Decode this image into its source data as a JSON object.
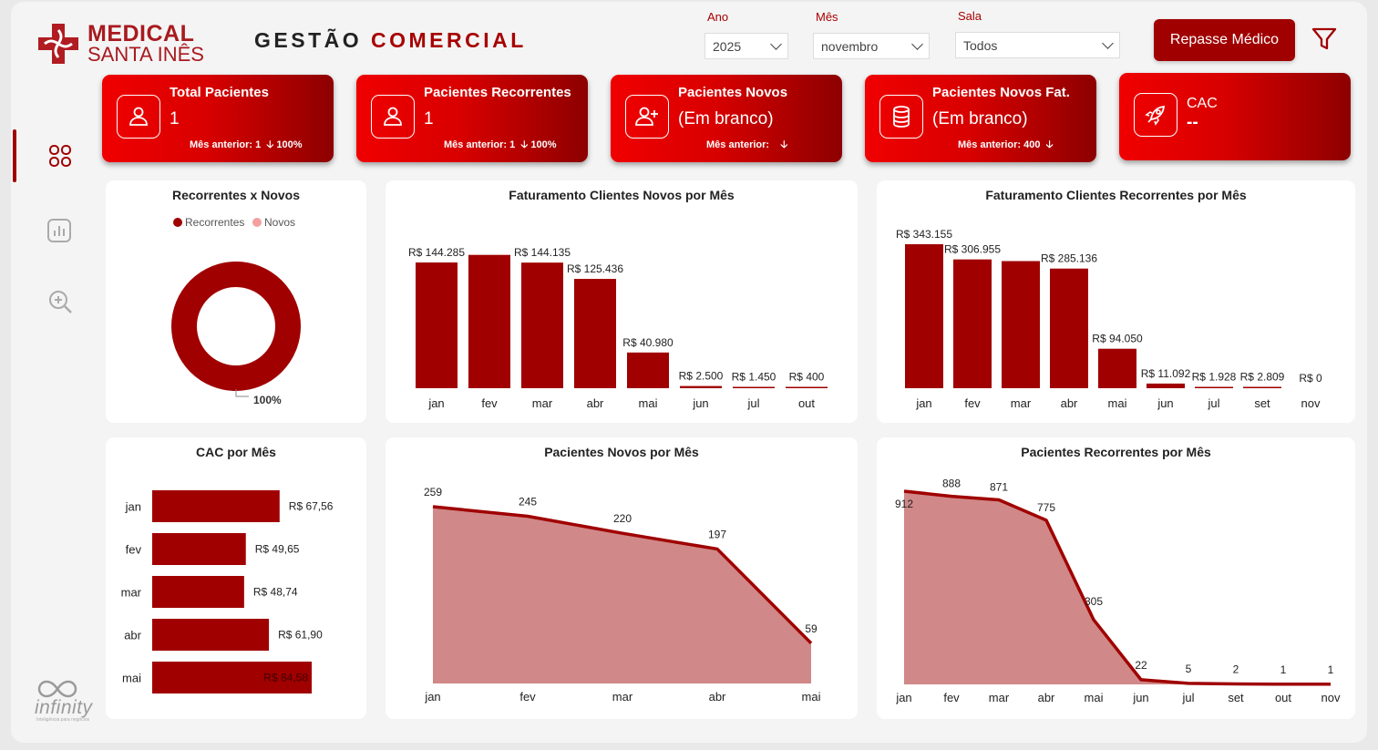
{
  "brand": {
    "line1": "MEDICAL",
    "line2": "SANTA INÊS",
    "primary_color": "#a00000",
    "bright_color": "#f00000",
    "area_fill": "#d08888"
  },
  "header": {
    "title_part1": "GESTÃO",
    "title_part2": "COMERCIAL"
  },
  "filters": {
    "ano": {
      "label": "Ano",
      "value": "2025"
    },
    "mes": {
      "label": "Mês",
      "value": "novembro"
    },
    "sala": {
      "label": "Sala",
      "value": "Todos"
    }
  },
  "actions": {
    "repasse_label": "Repasse Médico",
    "filter_icon": "funnel-icon"
  },
  "sidebar": {
    "items": [
      {
        "icon": "grid-icon",
        "active": true
      },
      {
        "icon": "bar-chart-icon",
        "active": false
      },
      {
        "icon": "zoom-in-icon",
        "active": false
      }
    ]
  },
  "kpis": [
    {
      "title": "Total Pacientes",
      "value": "1",
      "prev_label": "Mês anterior: 1",
      "change": "100%",
      "icon": "user-icon"
    },
    {
      "title": "Pacientes Recorrentes",
      "value": "1",
      "prev_label": "Mês anterior: 1",
      "change": "100%",
      "icon": "user-icon"
    },
    {
      "title": "Pacientes Novos",
      "value": "(Em branco)",
      "prev_label": "Mês anterior:",
      "change": "",
      "icon": "user-plus-icon"
    },
    {
      "title": "Pacientes Novos Fat.",
      "value": "(Em branco)",
      "prev_label": "Mês anterior: 400",
      "change": "",
      "icon": "database-icon"
    },
    {
      "title": "CAC",
      "value": "--",
      "prev_label": "",
      "change": "",
      "icon": "rocket-icon"
    }
  ],
  "footer": {
    "logo_text": "infinity",
    "logo_sub": "Inteligência para negócios"
  },
  "chart_data": [
    {
      "id": "donut",
      "type": "pie",
      "title": "Recorrentes x Novos",
      "series": [
        {
          "name": "Recorrentes",
          "value": 100,
          "color": "#a00000"
        },
        {
          "name": "Novos",
          "value": 0,
          "color": "#f4a0a0"
        }
      ],
      "data_label": "100%",
      "legend": "top-center"
    },
    {
      "id": "fat-novos",
      "type": "bar",
      "title": "Faturamento Clientes Novos por Mês",
      "categories": [
        "jan",
        "fev",
        "mar",
        "abr",
        "mai",
        "jun",
        "jul",
        "out"
      ],
      "values": [
        144285,
        153000,
        144135,
        125436,
        40980,
        2500,
        1450,
        400
      ],
      "labels": [
        "R$ 144.285",
        "",
        "R$ 144.135",
        "R$ 125.436",
        "R$ 40.980",
        "R$ 2.500",
        "R$ 1.450",
        "R$ 400"
      ],
      "ylim": [
        0,
        160000
      ]
    },
    {
      "id": "fat-rec",
      "type": "bar",
      "title": "Faturamento Clientes Recorrentes por Mês",
      "categories": [
        "jan",
        "fev",
        "mar",
        "abr",
        "mai",
        "jun",
        "jul",
        "set",
        "nov"
      ],
      "values": [
        343155,
        306955,
        303000,
        285136,
        94050,
        11092,
        1928,
        2809,
        0
      ],
      "labels": [
        "R$ 343.155",
        "R$ 306.955",
        "",
        "R$ 285.136",
        "R$ 94.050",
        "R$ 11.092",
        "R$ 1.928",
        "R$ 2.809",
        "R$ 0"
      ],
      "ylim": [
        0,
        343155
      ]
    },
    {
      "id": "cac",
      "type": "bar",
      "orientation": "horizontal",
      "title": "CAC por Mês",
      "categories": [
        "jan",
        "fev",
        "mar",
        "abr",
        "mai"
      ],
      "values": [
        67.56,
        49.65,
        48.74,
        61.9,
        84.58
      ],
      "labels": [
        "R$ 67,56",
        "R$ 49,65",
        "R$ 48,74",
        "R$ 61,90",
        "R$ 84,58"
      ],
      "xlim": [
        0,
        84.58
      ]
    },
    {
      "id": "pac-novos",
      "type": "area",
      "title": "Pacientes Novos por Mês",
      "categories": [
        "jan",
        "fev",
        "mar",
        "abr",
        "mai"
      ],
      "values": [
        259,
        245,
        220,
        197,
        59
      ],
      "ylim": [
        0,
        259
      ]
    },
    {
      "id": "pac-rec",
      "type": "area",
      "title": "Pacientes Recorrentes por Mês",
      "categories": [
        "jan",
        "fev",
        "mar",
        "abr",
        "mai",
        "jun",
        "jul",
        "set",
        "out",
        "nov"
      ],
      "values": [
        912,
        888,
        871,
        775,
        305,
        22,
        5,
        2,
        1,
        1
      ],
      "ylim": [
        0,
        912
      ]
    }
  ]
}
